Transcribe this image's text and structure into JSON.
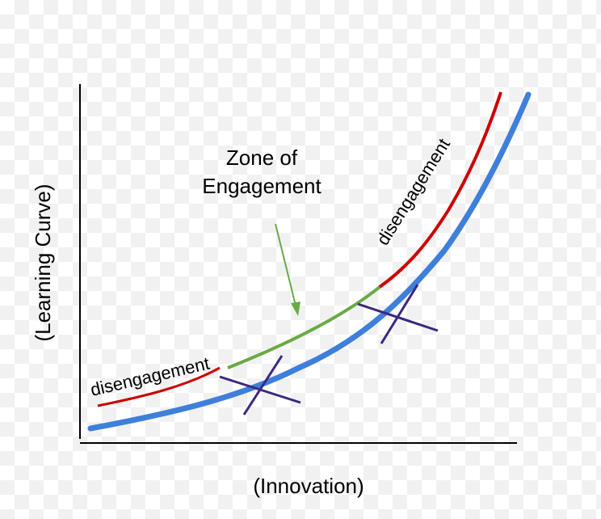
{
  "labels": {
    "y_axis": "(Learning Curve)",
    "x_axis": "(Innovation)",
    "zone_line1": "Zone of",
    "zone_line2": "Engagement",
    "disengagement_low": "disengagement",
    "disengagement_high": "disengagement"
  },
  "colors": {
    "baseline_curve": "#3f7fdc",
    "disengagement_curve": "#cc0000",
    "engagement_curve": "#6aaa46",
    "cross_marks": "#3b2880",
    "axes": "#000000"
  }
}
